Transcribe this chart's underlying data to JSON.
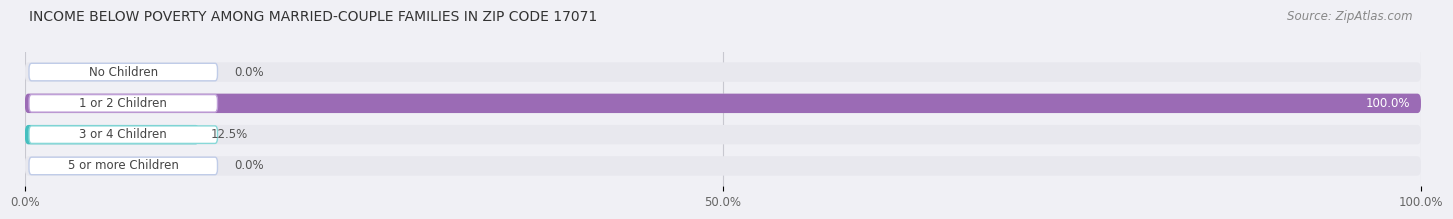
{
  "title": "INCOME BELOW POVERTY AMONG MARRIED-COUPLE FAMILIES IN ZIP CODE 17071",
  "source": "Source: ZipAtlas.com",
  "categories": [
    "No Children",
    "1 or 2 Children",
    "3 or 4 Children",
    "5 or more Children"
  ],
  "values": [
    0.0,
    100.0,
    12.5,
    0.0
  ],
  "bar_colors": [
    "#a0aed4",
    "#9b6bb5",
    "#45bfbf",
    "#a0aed4"
  ],
  "label_bg_colors": [
    "#ffffff",
    "#ffffff",
    "#ffffff",
    "#ffffff"
  ],
  "label_border_colors": [
    "#c0cce8",
    "#c0a0d8",
    "#88d8d8",
    "#c0cce8"
  ],
  "xlim": [
    0,
    100
  ],
  "xticks": [
    0.0,
    50.0,
    100.0
  ],
  "xtick_labels": [
    "0.0%",
    "50.0%",
    "100.0%"
  ],
  "bar_height": 0.62,
  "background_color": "#f0f0f5",
  "bar_bg_color": "#e8e8ee",
  "title_fontsize": 10,
  "source_fontsize": 8.5,
  "label_fontsize": 8.5,
  "value_fontsize": 8.5,
  "value_color_inside": "#ffffff",
  "value_color_outside": "#555555"
}
